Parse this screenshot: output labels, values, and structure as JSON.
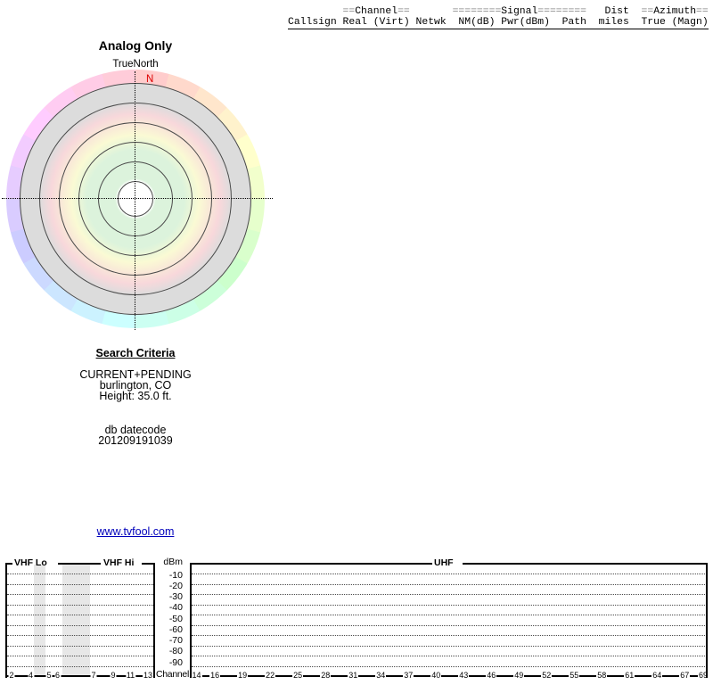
{
  "table": {
    "line1": {
      "pad1": "         ",
      "ch_l": "==",
      "ch": "Channel",
      "ch_r": "==",
      "pad2": "       ",
      "sig_l": "========",
      "sig": "Signal",
      "sig_r": "========",
      "pad3": "   ",
      "dist": "Dist",
      "pad4": "  ",
      "az_l": "==",
      "az": "Azimuth",
      "az_r": "=="
    },
    "line2": "Callsign Real (Virt) Netwk  NM(dB) Pwr(dBm)  Path  miles  True (Magn)",
    "columns": [
      "Callsign",
      "Real",
      "(Virt)",
      "Netwk",
      "NM(dB)",
      "Pwr(dBm)",
      "Path",
      "miles",
      "True",
      "(Magn)"
    ],
    "rows": []
  },
  "radar": {
    "title": "Analog Only",
    "north_label": "TrueNorth",
    "north_marker": "N",
    "north_marker_color": "#dd0000"
  },
  "search": {
    "heading": "Search Criteria",
    "filter": "CURRENT+PENDING",
    "location": "burlington, CO",
    "height": "Height: 35.0 ft.",
    "db_label": "db datecode",
    "db_code": "201209191039"
  },
  "link": "www.tvfool.com",
  "chart_data": [
    {
      "type": "scatter",
      "title": "Analog Only",
      "orientation_label": "TrueNorth",
      "north_marker": "N",
      "points": [],
      "notes": "Polar azimuth plot; no analog stations found, so no station vectors are drawn.",
      "ring_bands_inner_to_outer": [
        "white",
        "green",
        "green",
        "yellow",
        "pink",
        "gray"
      ],
      "outer_ring": "pastel azimuth hue wheel, red at north, clockwise through yellow (E), cyan (S), violet (W)"
    },
    {
      "type": "bar",
      "title": "",
      "xlabel": "Channel",
      "ylabel": "dBm",
      "yticks": [
        -10,
        -20,
        -30,
        -40,
        -50,
        -60,
        -70,
        -80,
        -90
      ],
      "ylim": [
        0,
        -100
      ],
      "grid": true,
      "sections": [
        {
          "label": "VHF Lo",
          "channels": [
            2,
            4,
            5,
            6
          ]
        },
        {
          "label": "VHF Hi",
          "channels": [
            7,
            9,
            11,
            13
          ]
        },
        {
          "label": "UHF",
          "channels": [
            14,
            16,
            19,
            22,
            25,
            28,
            31,
            34,
            37,
            40,
            43,
            46,
            49,
            52,
            55,
            58,
            61,
            64,
            67,
            69
          ]
        }
      ],
      "values": [],
      "notes": "No signal bars plotted (no stations found). Gray bands mark non-TV frequency gaps in the VHF range."
    }
  ]
}
